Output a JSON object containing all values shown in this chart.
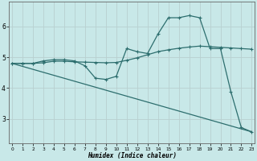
{
  "xlabel": "Humidex (Indice chaleur)",
  "background_color": "#c8e8e8",
  "grid_color": "#b8d0d0",
  "line_color": "#2d6e6e",
  "x": [
    0,
    1,
    2,
    3,
    4,
    5,
    6,
    7,
    8,
    9,
    10,
    11,
    12,
    13,
    14,
    15,
    16,
    17,
    18,
    19,
    20,
    21,
    22,
    23
  ],
  "line1": [
    4.8,
    4.8,
    4.8,
    4.88,
    4.92,
    4.92,
    4.88,
    4.72,
    4.32,
    4.28,
    4.38,
    5.28,
    5.18,
    5.12,
    5.75,
    6.28,
    6.28,
    6.35,
    6.28,
    5.28,
    5.28,
    3.88,
    2.72,
    2.58
  ],
  "line2": [
    4.8,
    4.8,
    4.8,
    4.82,
    4.87,
    4.87,
    4.85,
    4.84,
    4.83,
    4.82,
    4.83,
    4.9,
    4.98,
    5.08,
    5.18,
    5.24,
    5.29,
    5.33,
    5.36,
    5.34,
    5.32,
    5.3,
    5.28,
    5.26
  ],
  "line3_x": [
    0,
    23
  ],
  "line3_y": [
    4.8,
    2.58
  ],
  "ylim": [
    2.2,
    6.8
  ],
  "xlim": [
    -0.3,
    23.3
  ],
  "yticks": [
    3,
    4,
    5,
    6
  ],
  "xticks": [
    0,
    1,
    2,
    3,
    4,
    5,
    6,
    7,
    8,
    9,
    10,
    11,
    12,
    13,
    14,
    15,
    16,
    17,
    18,
    19,
    20,
    21,
    22,
    23
  ]
}
